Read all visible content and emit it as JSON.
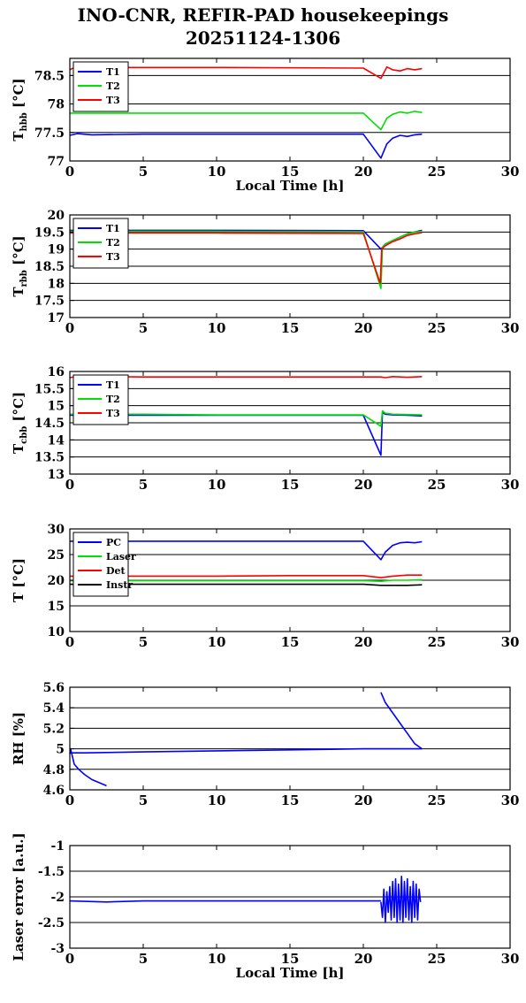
{
  "title": "INO-CNR, REFIR-PAD housekeepings",
  "subtitle": "20251124-1306",
  "colors": {
    "blue": "#0000ff",
    "green": "#00e000",
    "red": "#ff0000",
    "black": "#000000"
  },
  "chart_data": [
    {
      "type": "line",
      "ylabel": "T_hbb [°C]",
      "ylabel_main": "T",
      "ylabel_sub": "hbb",
      "ylabel_unit": " [°C]",
      "xlabel": "Local Time [h]",
      "xlim": [
        0,
        30
      ],
      "ylim": [
        77,
        78.8
      ],
      "xticks": [
        "0",
        "5",
        "10",
        "15",
        "20",
        "25",
        "30"
      ],
      "yticks": [
        "77",
        "77.5",
        "78",
        "78.5"
      ],
      "ytick_values": [
        77,
        77.5,
        78,
        78.5
      ],
      "legend_placement": "top-left",
      "series": [
        {
          "name": "T1",
          "color": "#0000ff",
          "x": [
            0,
            0.5,
            1.5,
            5,
            10,
            20,
            21.2,
            21.6,
            22,
            22.5,
            23,
            23.5,
            24
          ],
          "y": [
            77.45,
            77.48,
            77.46,
            77.47,
            77.47,
            77.47,
            77.05,
            77.3,
            77.4,
            77.45,
            77.43,
            77.46,
            77.47
          ]
        },
        {
          "name": "T2",
          "color": "#00e000",
          "x": [
            0,
            5,
            10,
            20,
            21.2,
            21.6,
            22,
            22.5,
            23,
            23.5,
            24
          ],
          "y": [
            77.84,
            77.84,
            77.84,
            77.84,
            77.55,
            77.75,
            77.82,
            77.86,
            77.84,
            77.87,
            77.85
          ]
        },
        {
          "name": "T3",
          "color": "#ff0000",
          "x": [
            0,
            0.3,
            1,
            5,
            10,
            20,
            21.2,
            21.6,
            22,
            22.5,
            23,
            23.5,
            24
          ],
          "y": [
            78.6,
            78.64,
            78.64,
            78.64,
            78.64,
            78.63,
            78.45,
            78.65,
            78.6,
            78.58,
            78.62,
            78.6,
            78.62
          ]
        }
      ]
    },
    {
      "type": "line",
      "ylabel": "T_rbb [°C]",
      "ylabel_main": "T",
      "ylabel_sub": "rbb",
      "ylabel_unit": " [°C]",
      "xlim": [
        0,
        30
      ],
      "ylim": [
        17,
        20
      ],
      "xticks": [
        "0",
        "5",
        "10",
        "15",
        "20",
        "25",
        "30"
      ],
      "yticks": [
        "17",
        "17.5",
        "18",
        "18.5",
        "19",
        "19.5",
        "20"
      ],
      "ytick_values": [
        17,
        17.5,
        18,
        18.5,
        19,
        19.5,
        20
      ],
      "legend_placement": "top-left",
      "series": [
        {
          "name": "T1",
          "color": "#0000ff",
          "x": [
            0,
            5,
            10,
            20,
            21.2,
            21.5,
            22,
            22.5,
            23,
            23.5,
            24
          ],
          "y": [
            19.55,
            19.55,
            19.55,
            19.54,
            19.0,
            19.15,
            19.25,
            19.35,
            19.45,
            19.5,
            19.55
          ]
        },
        {
          "name": "T2",
          "color": "#00e000",
          "x": [
            0,
            5,
            10,
            20,
            21.2,
            21.3,
            21.5,
            22,
            22.5,
            23,
            23.5,
            24
          ],
          "y": [
            19.52,
            19.52,
            19.52,
            19.51,
            17.85,
            19.05,
            19.15,
            19.25,
            19.35,
            19.45,
            19.5,
            19.52
          ]
        },
        {
          "name": "T3",
          "color": "#ff0000",
          "x": [
            0,
            5,
            10,
            20,
            21.15,
            21.25,
            21.5,
            22,
            22.5,
            23,
            23.5,
            24
          ],
          "y": [
            19.47,
            19.47,
            19.47,
            19.46,
            18.0,
            19.0,
            19.1,
            19.22,
            19.3,
            19.4,
            19.45,
            19.48
          ]
        }
      ]
    },
    {
      "type": "line",
      "ylabel": "T_cbb [°C]",
      "ylabel_main": "T",
      "ylabel_sub": "cbb",
      "ylabel_unit": " [°C]",
      "xlim": [
        0,
        30
      ],
      "ylim": [
        13,
        16
      ],
      "xticks": [
        "0",
        "5",
        "10",
        "15",
        "20",
        "25",
        "30"
      ],
      "yticks": [
        "13",
        "13.5",
        "14",
        "14.5",
        "15",
        "15.5",
        "16"
      ],
      "ytick_values": [
        13,
        13.5,
        14,
        14.5,
        15,
        15.5,
        16
      ],
      "legend_placement": "top-left",
      "series": [
        {
          "name": "T1",
          "color": "#0000ff",
          "x": [
            0,
            5,
            10,
            20,
            21.2,
            21.3,
            21.5,
            22,
            23,
            24
          ],
          "y": [
            14.72,
            14.72,
            14.72,
            14.72,
            13.55,
            14.8,
            14.75,
            14.73,
            14.72,
            14.7
          ]
        },
        {
          "name": "T2",
          "color": "#00e000",
          "x": [
            0,
            5,
            10,
            20,
            21.2,
            21.3,
            21.5,
            22,
            23,
            24
          ],
          "y": [
            14.75,
            14.75,
            14.73,
            14.73,
            14.4,
            14.85,
            14.78,
            14.75,
            14.74,
            14.73
          ]
        },
        {
          "name": "T3",
          "color": "#ff0000",
          "x": [
            0,
            0.5,
            5,
            10,
            20,
            21.2,
            21.5,
            22,
            23,
            24
          ],
          "y": [
            15.82,
            15.86,
            15.84,
            15.84,
            15.84,
            15.84,
            15.82,
            15.85,
            15.83,
            15.85
          ]
        }
      ]
    },
    {
      "type": "line",
      "ylabel": "T [°C]",
      "ylabel_main": "T",
      "ylabel_sub": "",
      "ylabel_unit": " [°C]",
      "xlim": [
        0,
        30
      ],
      "ylim": [
        10,
        30
      ],
      "xticks": [
        "0",
        "5",
        "10",
        "15",
        "20",
        "25",
        "30"
      ],
      "yticks": [
        "10",
        "15",
        "20",
        "25",
        "30"
      ],
      "ytick_values": [
        10,
        15,
        20,
        25,
        30
      ],
      "legend_placement": "top-left",
      "series": [
        {
          "name": "PC",
          "color": "#0000ff",
          "x": [
            0,
            5,
            10,
            20,
            21.2,
            21.5,
            22,
            22.5,
            23,
            23.5,
            24
          ],
          "y": [
            27.6,
            27.6,
            27.6,
            27.6,
            24.0,
            25.5,
            26.8,
            27.3,
            27.4,
            27.3,
            27.5
          ]
        },
        {
          "name": "Laser",
          "color": "#00e000",
          "x": [
            0,
            5,
            10,
            20,
            21.2,
            22,
            23,
            24
          ],
          "y": [
            19.9,
            19.9,
            19.9,
            19.9,
            19.8,
            20.0,
            20.0,
            20.1
          ]
        },
        {
          "name": "Det",
          "color": "#ff0000",
          "x": [
            0,
            5,
            10,
            15,
            20,
            21.2,
            22,
            23,
            24
          ],
          "y": [
            20.8,
            20.8,
            20.8,
            20.9,
            20.9,
            20.5,
            20.8,
            21.0,
            21.0
          ]
        },
        {
          "name": "Instr",
          "color": "#000000",
          "x": [
            0,
            5,
            10,
            20,
            21.2,
            22,
            23,
            24
          ],
          "y": [
            19.2,
            19.2,
            19.2,
            19.2,
            19.0,
            19.0,
            19.0,
            19.1
          ]
        }
      ]
    },
    {
      "type": "line",
      "ylabel": "RH [%]",
      "ylabel_main": "RH [%]",
      "ylabel_sub": "",
      "ylabel_unit": "",
      "xlim": [
        0,
        30
      ],
      "ylim": [
        4.6,
        5.6
      ],
      "xticks": [
        "0",
        "5",
        "10",
        "15",
        "20",
        "25",
        "30"
      ],
      "yticks": [
        "4.6",
        "4.8",
        "5",
        "5.2",
        "5.4",
        "5.6"
      ],
      "ytick_values": [
        4.6,
        4.8,
        5.0,
        5.2,
        5.4,
        5.6
      ],
      "legend_placement": "none",
      "series": [
        {
          "name": "",
          "color": "#0000ff",
          "x": [
            0,
            0.05,
            0.3,
            0.6,
            1.0,
            1.5,
            2.0,
            2.5
          ],
          "y": [
            4.95,
            5.0,
            4.85,
            4.8,
            4.75,
            4.7,
            4.67,
            4.64
          ]
        },
        {
          "name": "",
          "color": "#0000ff",
          "x": [
            0,
            1,
            5,
            10,
            15,
            20,
            21.2
          ],
          "y": [
            4.96,
            4.96,
            4.97,
            4.98,
            4.99,
            5.0,
            5.0
          ]
        },
        {
          "name": "",
          "color": "#0000ff",
          "x": [
            21.2,
            21.5,
            22,
            22.5,
            23,
            23.5,
            24
          ],
          "y": [
            5.55,
            5.45,
            5.35,
            5.25,
            5.15,
            5.05,
            5.0
          ]
        },
        {
          "name": "",
          "color": "#0000ff",
          "x": [
            21.2,
            22,
            23,
            24
          ],
          "y": [
            5.0,
            5.0,
            5.0,
            5.0
          ]
        }
      ]
    },
    {
      "type": "line",
      "ylabel": "Laser error [a.u.]",
      "ylabel_main": "Laser error [a.u.]",
      "ylabel_sub": "",
      "ylabel_unit": "",
      "xlabel": "Local Time [h]",
      "xlim": [
        0,
        30
      ],
      "ylim": [
        -3,
        -1
      ],
      "xticks": [
        "0",
        "5",
        "10",
        "15",
        "20",
        "25",
        "30"
      ],
      "yticks": [
        "-3",
        "-2.5",
        "-2",
        "-1.5",
        "-1"
      ],
      "ytick_values": [
        -3,
        -2.5,
        -2,
        -1.5,
        -1
      ],
      "legend_placement": "none",
      "series": [
        {
          "name": "",
          "color": "#0000ff",
          "x": [
            0,
            2.5,
            5,
            10,
            15,
            20,
            21.2
          ],
          "y": [
            -2.08,
            -2.1,
            -2.08,
            -2.08,
            -2.08,
            -2.08,
            -2.08
          ]
        },
        {
          "name": "",
          "color": "#0000ff",
          "x": [
            21.2,
            21.3,
            21.4,
            21.5,
            21.6,
            21.7,
            21.8,
            21.9,
            22.0,
            22.1,
            22.2,
            22.3,
            22.4,
            22.5,
            22.6,
            22.7,
            22.8,
            22.9,
            23.0,
            23.1,
            23.2,
            23.3,
            23.4,
            23.5,
            23.6,
            23.7,
            23.8,
            23.9
          ],
          "y": [
            -2.1,
            -2.4,
            -1.85,
            -2.5,
            -1.9,
            -2.3,
            -1.8,
            -2.45,
            -1.7,
            -2.4,
            -1.65,
            -2.5,
            -1.75,
            -2.45,
            -1.6,
            -2.5,
            -1.7,
            -2.4,
            -1.65,
            -2.45,
            -1.8,
            -2.5,
            -1.7,
            -2.4,
            -1.75,
            -2.45,
            -1.85,
            -2.1
          ]
        }
      ]
    }
  ]
}
